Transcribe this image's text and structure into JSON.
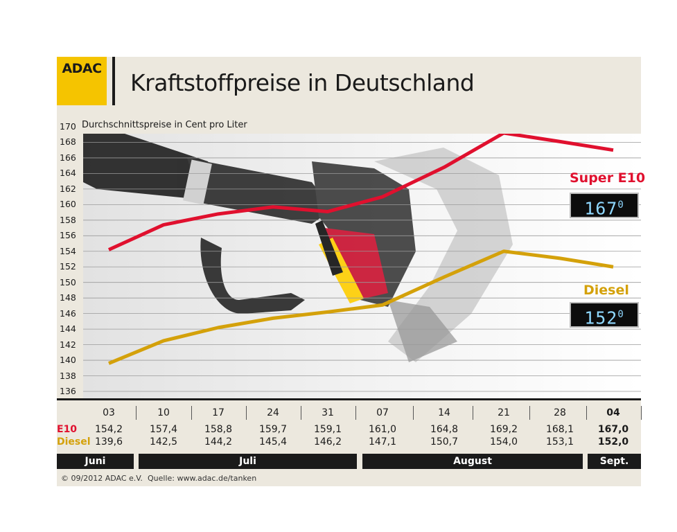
{
  "header": {
    "logo": "ADAC",
    "title": "Kraftstoffpreise in Deutschland"
  },
  "chart_data": {
    "type": "line",
    "ylabel": "Durchschnittspreise in Cent pro Liter",
    "ylim": [
      136,
      170
    ],
    "yticks": [
      136,
      138,
      140,
      142,
      144,
      146,
      148,
      150,
      152,
      154,
      156,
      158,
      160,
      162,
      164,
      166,
      168,
      170
    ],
    "categories": [
      "03",
      "10",
      "17",
      "24",
      "31",
      "07",
      "14",
      "21",
      "28",
      "04"
    ],
    "series": [
      {
        "name": "Super E10",
        "short": "E10",
        "color": "#e0102e",
        "values": [
          154.2,
          157.4,
          158.8,
          159.7,
          159.1,
          161.0,
          164.8,
          169.2,
          168.1,
          167.0
        ],
        "labels": [
          "154,2",
          "157,4",
          "158,8",
          "159,7",
          "159,1",
          "161,0",
          "164,8",
          "169,2",
          "168,1",
          "167,0"
        ],
        "display": "167",
        "display_sup": "0"
      },
      {
        "name": "Diesel",
        "short": "Diesel",
        "color": "#d4a10a",
        "values": [
          139.6,
          142.5,
          144.2,
          145.4,
          146.2,
          147.1,
          150.7,
          154.0,
          153.1,
          152.0
        ],
        "labels": [
          "139,6",
          "142,5",
          "144,2",
          "145,4",
          "146,2",
          "147,1",
          "150,7",
          "154,0",
          "153,1",
          "152,0"
        ],
        "display": "152",
        "display_sup": "0"
      }
    ],
    "months": [
      "Juni",
      "Juli",
      "August",
      "Sept."
    ],
    "grid": true
  },
  "footer": {
    "copyright": "© 09/2012 ADAC e.V.",
    "source": "Quelle: www.adac.de/tanken"
  }
}
